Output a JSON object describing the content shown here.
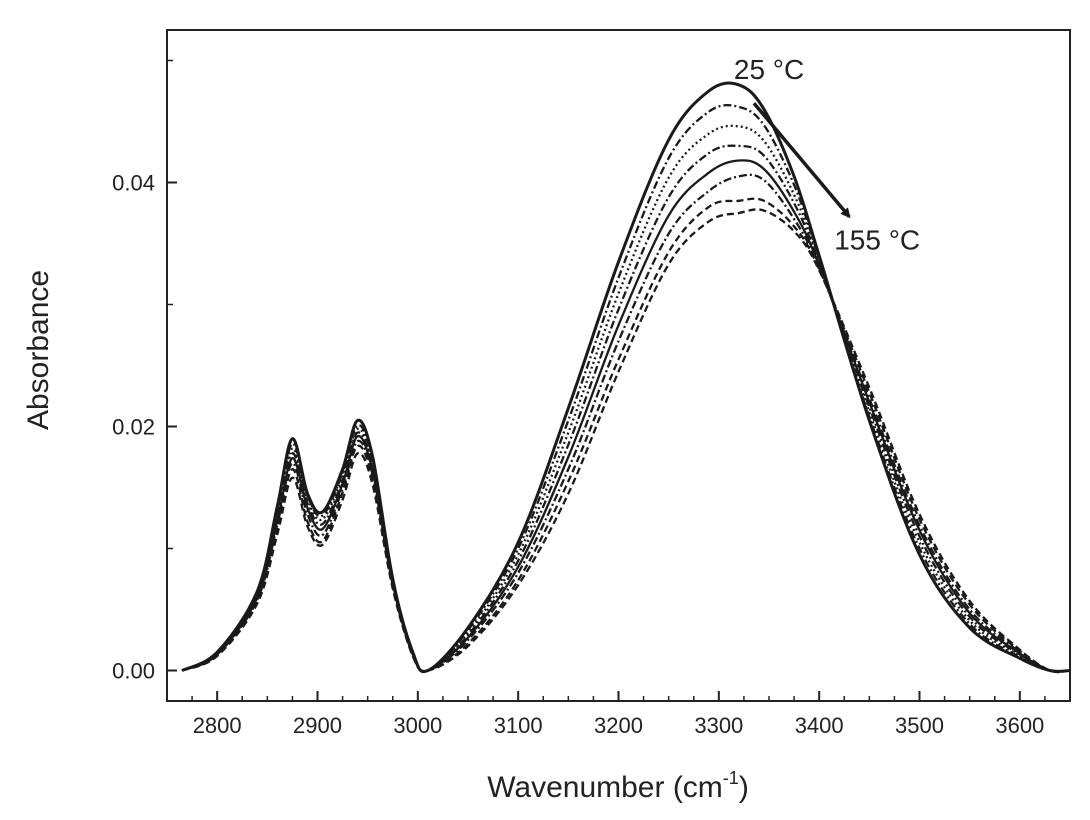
{
  "chart_data": {
    "type": "line",
    "title": "",
    "xlabel_main": "Wavenumber (cm",
    "xlabel_sup": "-1",
    "xlabel_close": ")",
    "ylabel": "Absorbance",
    "xlim": [
      2750,
      3650
    ],
    "ylim": [
      -0.0025,
      0.0525
    ],
    "x_ticks": [
      2800,
      2900,
      3000,
      3100,
      3200,
      3300,
      3400,
      3500,
      3600
    ],
    "x_tick_labels": [
      "2800",
      "2900",
      "3000",
      "3100",
      "3200",
      "3300",
      "3400",
      "3500",
      "3600"
    ],
    "y_ticks": [
      0.0,
      0.02,
      0.04
    ],
    "y_tick_labels": [
      "0.00",
      "0.02",
      "0.04"
    ],
    "grid": false,
    "legend": "none",
    "annotations": [
      {
        "text": "25 °C",
        "x": 3315,
        "y": 0.0485
      },
      {
        "text": "155 °C",
        "x": 3415,
        "y": 0.0345
      }
    ],
    "arrow": {
      "from": [
        3335,
        0.0465
      ],
      "to": [
        3430,
        0.0372
      ]
    },
    "series": [
      {
        "x": [
          2765,
          2800,
          2840,
          2860,
          2875,
          2890,
          2905,
          2925,
          2940,
          2955,
          2975,
          2995,
          3010,
          3050,
          3100,
          3150,
          3200,
          3250,
          3290,
          3320,
          3345,
          3375,
          3400,
          3450,
          3500,
          3550,
          3600,
          3630,
          3650
        ],
        "values": [
          0.0,
          0.0015,
          0.0065,
          0.0135,
          0.019,
          0.0145,
          0.013,
          0.0165,
          0.0205,
          0.0175,
          0.0075,
          0.0015,
          0.0,
          0.0035,
          0.0105,
          0.0215,
          0.0335,
          0.0435,
          0.0475,
          0.048,
          0.046,
          0.0405,
          0.034,
          0.0205,
          0.0095,
          0.0035,
          0.001,
          0.0,
          0.0
        ],
        "style": "solid"
      },
      {
        "x": [
          2765,
          2800,
          2840,
          2860,
          2875,
          2890,
          2905,
          2925,
          2940,
          2955,
          2975,
          2995,
          3010,
          3050,
          3100,
          3150,
          3200,
          3250,
          3290,
          3320,
          3345,
          3375,
          3400,
          3450,
          3500,
          3550,
          3600,
          3630,
          3650
        ],
        "values": [
          0.0,
          0.0015,
          0.0064,
          0.0132,
          0.0186,
          0.0143,
          0.0127,
          0.0162,
          0.0201,
          0.0172,
          0.0074,
          0.0015,
          0.0,
          0.0033,
          0.01,
          0.0205,
          0.0322,
          0.042,
          0.0458,
          0.0462,
          0.0447,
          0.0398,
          0.0338,
          0.0208,
          0.01,
          0.0038,
          0.0011,
          0.0,
          0.0
        ],
        "style": "dashdot"
      },
      {
        "x": [
          2765,
          2800,
          2840,
          2860,
          2875,
          2890,
          2905,
          2925,
          2940,
          2955,
          2975,
          2995,
          3010,
          3050,
          3100,
          3150,
          3200,
          3250,
          3290,
          3320,
          3345,
          3375,
          3400,
          3450,
          3500,
          3550,
          3600,
          3630,
          3650
        ],
        "values": [
          0.0,
          0.0014,
          0.0062,
          0.0129,
          0.0182,
          0.014,
          0.0124,
          0.0159,
          0.0198,
          0.0169,
          0.0073,
          0.0014,
          0.0,
          0.0031,
          0.0095,
          0.0195,
          0.0309,
          0.0404,
          0.044,
          0.0446,
          0.0434,
          0.039,
          0.0336,
          0.0212,
          0.0105,
          0.0041,
          0.0012,
          0.0,
          0.0
        ],
        "style": "dotted"
      },
      {
        "x": [
          2765,
          2800,
          2840,
          2860,
          2875,
          2890,
          2905,
          2925,
          2940,
          2955,
          2975,
          2995,
          3010,
          3050,
          3100,
          3150,
          3200,
          3250,
          3290,
          3320,
          3345,
          3375,
          3400,
          3450,
          3500,
          3550,
          3600,
          3630,
          3650
        ],
        "values": [
          0.0,
          0.0014,
          0.0061,
          0.0126,
          0.0178,
          0.0137,
          0.012,
          0.0156,
          0.0195,
          0.0166,
          0.0072,
          0.0014,
          0.0,
          0.0029,
          0.009,
          0.0185,
          0.0296,
          0.0388,
          0.0424,
          0.043,
          0.0422,
          0.0383,
          0.0334,
          0.0216,
          0.011,
          0.0044,
          0.0013,
          0.0,
          0.0
        ],
        "style": "dashdot"
      },
      {
        "x": [
          2765,
          2800,
          2840,
          2860,
          2875,
          2890,
          2905,
          2925,
          2940,
          2955,
          2975,
          2995,
          3010,
          3050,
          3100,
          3150,
          3200,
          3250,
          3290,
          3320,
          3345,
          3375,
          3400,
          3450,
          3500,
          3550,
          3600,
          3630,
          3650
        ],
        "values": [
          0.0,
          0.0013,
          0.006,
          0.0123,
          0.0174,
          0.0133,
          0.0116,
          0.0153,
          0.0192,
          0.0163,
          0.0071,
          0.0013,
          0.0,
          0.0027,
          0.0085,
          0.0175,
          0.0283,
          0.0373,
          0.0408,
          0.0418,
          0.0411,
          0.0376,
          0.0332,
          0.022,
          0.0115,
          0.0047,
          0.0014,
          0.0,
          0.0
        ],
        "style": "solid"
      },
      {
        "x": [
          2765,
          2800,
          2840,
          2860,
          2875,
          2890,
          2905,
          2925,
          2940,
          2955,
          2975,
          2995,
          3010,
          3050,
          3100,
          3150,
          3200,
          3250,
          3290,
          3320,
          3345,
          3375,
          3400,
          3450,
          3500,
          3550,
          3600,
          3630,
          3650
        ],
        "values": [
          0.0,
          0.0013,
          0.0058,
          0.012,
          0.017,
          0.0128,
          0.0111,
          0.0149,
          0.0188,
          0.016,
          0.007,
          0.0013,
          0.0,
          0.0025,
          0.008,
          0.0165,
          0.027,
          0.0358,
          0.0393,
          0.0405,
          0.0402,
          0.037,
          0.033,
          0.0223,
          0.0119,
          0.005,
          0.0015,
          0.0,
          0.0
        ],
        "style": "dashdot"
      },
      {
        "x": [
          2765,
          2800,
          2840,
          2860,
          2875,
          2890,
          2905,
          2925,
          2940,
          2955,
          2975,
          2995,
          3010,
          3050,
          3100,
          3150,
          3200,
          3250,
          3290,
          3320,
          3345,
          3375,
          3400,
          3450,
          3500,
          3550,
          3600,
          3630,
          3650
        ],
        "values": [
          0.0,
          0.0012,
          0.0056,
          0.0116,
          0.0165,
          0.0122,
          0.0106,
          0.0146,
          0.0184,
          0.0157,
          0.0069,
          0.0012,
          0.0,
          0.0022,
          0.0074,
          0.0155,
          0.0255,
          0.0343,
          0.038,
          0.0385,
          0.0385,
          0.0364,
          0.0329,
          0.0228,
          0.0124,
          0.0054,
          0.0016,
          0.0,
          0.0
        ],
        "style": "dashed"
      },
      {
        "x": [
          2765,
          2800,
          2840,
          2860,
          2875,
          2890,
          2905,
          2925,
          2940,
          2955,
          2975,
          2995,
          3010,
          3050,
          3100,
          3150,
          3200,
          3250,
          3290,
          3320,
          3345,
          3375,
          3400,
          3450,
          3500,
          3550,
          3600,
          3630,
          3650
        ],
        "values": [
          0.0,
          0.0012,
          0.0055,
          0.0112,
          0.0158,
          0.0118,
          0.0103,
          0.014,
          0.0178,
          0.0152,
          0.0067,
          0.0012,
          0.0,
          0.002,
          0.007,
          0.0145,
          0.0245,
          0.0333,
          0.0368,
          0.0375,
          0.0377,
          0.036,
          0.0328,
          0.0232,
          0.0128,
          0.0057,
          0.0017,
          0.0,
          0.0
        ],
        "style": "dashed"
      }
    ]
  }
}
